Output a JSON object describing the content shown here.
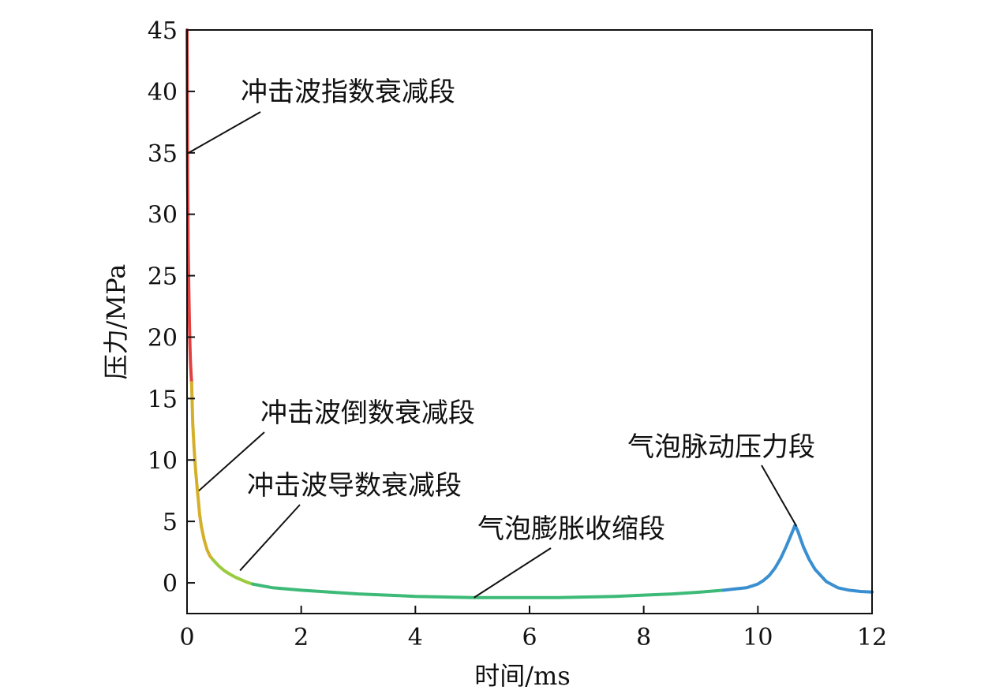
{
  "chart_data": {
    "type": "line",
    "xlabel": "时间/ms",
    "ylabel": "压力/MPa",
    "xlim": [
      0,
      12
    ],
    "ylim": [
      -2.5,
      45
    ],
    "xticks": [
      0,
      2,
      4,
      6,
      8,
      10,
      12
    ],
    "yticks": [
      0,
      5,
      10,
      15,
      20,
      25,
      30,
      35,
      40,
      45
    ],
    "grid": false,
    "series": [
      {
        "name": "冲击波指数衰减段",
        "color": "#e04040",
        "x": [
          0.0,
          0.005,
          0.01,
          0.015,
          0.02,
          0.03,
          0.04,
          0.05,
          0.06,
          0.07,
          0.08
        ],
        "y": [
          45.0,
          38.0,
          33.0,
          30.0,
          27.5,
          24.0,
          21.5,
          19.5,
          18.0,
          17.0,
          16.3
        ]
      },
      {
        "name": "冲击波倒数衰减段",
        "color": "#d4b02a",
        "x": [
          0.08,
          0.1,
          0.12,
          0.15,
          0.18,
          0.2,
          0.22,
          0.25,
          0.3,
          0.35,
          0.4,
          0.45
        ],
        "y": [
          16.3,
          13.0,
          11.2,
          9.2,
          7.6,
          6.6,
          5.6,
          4.6,
          3.5,
          2.7,
          2.2,
          1.9
        ]
      },
      {
        "name": "冲击波导数衰减段",
        "color": "#9acb3c",
        "x": [
          0.45,
          0.55,
          0.65,
          0.75,
          0.85,
          0.95,
          1.05,
          1.15
        ],
        "y": [
          1.9,
          1.4,
          1.0,
          0.7,
          0.45,
          0.25,
          0.05,
          -0.1
        ]
      },
      {
        "name": "气泡膨胀收缩段",
        "color": "#3dba78",
        "x": [
          1.15,
          1.5,
          2.0,
          2.5,
          3.0,
          3.5,
          4.0,
          4.5,
          5.0,
          5.5,
          6.0,
          6.5,
          7.0,
          7.5,
          8.0,
          8.5,
          9.0,
          9.4
        ],
        "y": [
          -0.1,
          -0.4,
          -0.6,
          -0.75,
          -0.9,
          -1.0,
          -1.1,
          -1.15,
          -1.2,
          -1.2,
          -1.2,
          -1.2,
          -1.15,
          -1.1,
          -1.0,
          -0.9,
          -0.75,
          -0.6
        ]
      },
      {
        "name": "气泡脉动压力段",
        "color": "#3a8fd0",
        "x": [
          9.4,
          9.6,
          9.8,
          10.0,
          10.1,
          10.2,
          10.3,
          10.4,
          10.5,
          10.6,
          10.65,
          10.7,
          10.8,
          10.9,
          11.0,
          11.2,
          11.4,
          11.6,
          11.8,
          12.0
        ],
        "y": [
          -0.6,
          -0.5,
          -0.4,
          -0.1,
          0.2,
          0.6,
          1.2,
          2.0,
          3.0,
          4.1,
          4.7,
          4.2,
          2.9,
          1.9,
          1.1,
          0.1,
          -0.4,
          -0.6,
          -0.7,
          -0.75
        ]
      }
    ],
    "annotations": [
      {
        "text": "冲击波指数衰减段",
        "target": [
          0.0,
          35.0
        ]
      },
      {
        "text": "冲击波倒数衰减段",
        "target": [
          0.18,
          7.5
        ]
      },
      {
        "text": "冲击波导数衰减段",
        "target": [
          0.9,
          1.0
        ]
      },
      {
        "text": "气泡膨胀收缩段",
        "target": [
          5.0,
          -1.2
        ]
      },
      {
        "text": "气泡脉动压力段",
        "target": [
          10.65,
          4.6
        ]
      }
    ]
  }
}
